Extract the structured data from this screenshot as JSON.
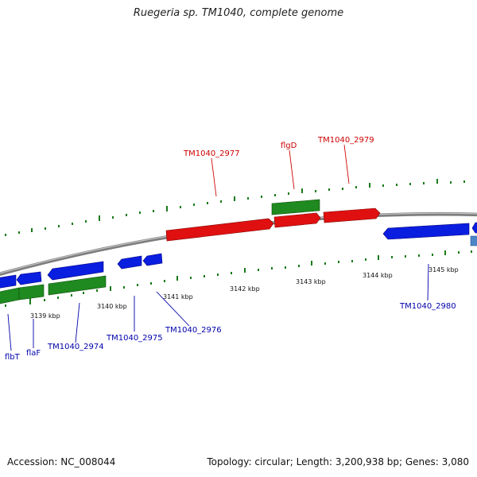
{
  "title": "Ruegeria sp. TM1040, complete genome",
  "footer": {
    "accession": "Accession: NC_008044",
    "summary": "Topology: circular; Length: 3,200,938 bp; Genes: 3,080"
  },
  "colors": {
    "forward_gene": "#e01010",
    "reverse_gene": "#0a1ee0",
    "green_feature": "#1f8a1f",
    "backbone": "#8a8a8a",
    "forward_label": "#cc0000",
    "reverse_label": "#0000aa",
    "tick": "#1a7a1a",
    "partial_feature": "#4a86c8"
  },
  "scale_labels": [
    "3139 kbp",
    "3140 kbp",
    "3141 kbp",
    "3142 kbp",
    "3143 kbp",
    "3144 kbp",
    "3145 kbp"
  ],
  "forward_labels": [
    "TM1040_2977",
    "flgD",
    "TM1040_2979"
  ],
  "reverse_labels": [
    "flbT",
    "flaF",
    "TM1040_2974",
    "TM1040_2975",
    "TM1040_2976",
    "TM1040_2980"
  ]
}
